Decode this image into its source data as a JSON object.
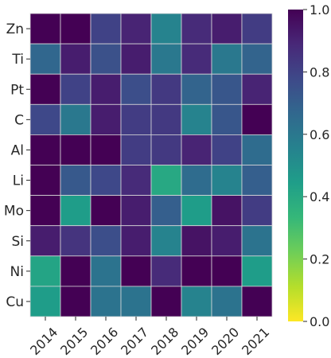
{
  "chart_data": {
    "type": "heatmap",
    "title": "",
    "xlabel": "",
    "ylabel": "",
    "x_categories": [
      "2014",
      "2015",
      "2016",
      "2017",
      "2018",
      "2019",
      "2020",
      "2021"
    ],
    "y_categories": [
      "Zn",
      "Ti",
      "Pt",
      "C",
      "Al",
      "Li",
      "Mo",
      "Si",
      "Ni",
      "Cu"
    ],
    "values": [
      [
        1.0,
        1.0,
        0.8,
        0.9,
        0.55,
        0.88,
        0.92,
        0.82
      ],
      [
        0.67,
        0.92,
        0.75,
        0.92,
        0.6,
        0.88,
        0.6,
        0.68
      ],
      [
        1.0,
        0.8,
        0.92,
        0.76,
        0.83,
        0.68,
        0.73,
        0.9
      ],
      [
        0.78,
        0.6,
        0.92,
        0.82,
        0.83,
        0.55,
        0.73,
        1.0
      ],
      [
        1.0,
        1.0,
        1.0,
        0.82,
        0.83,
        0.9,
        0.8,
        0.65
      ],
      [
        1.0,
        0.72,
        0.78,
        0.88,
        0.4,
        0.65,
        0.55,
        0.7
      ],
      [
        1.0,
        0.45,
        1.0,
        0.92,
        0.7,
        0.45,
        0.95,
        0.82
      ],
      [
        0.92,
        0.85,
        0.76,
        0.92,
        0.55,
        0.95,
        0.92,
        0.62
      ],
      [
        0.42,
        1.0,
        0.62,
        1.0,
        0.88,
        1.0,
        1.0,
        0.45
      ],
      [
        0.45,
        1.0,
        0.62,
        0.62,
        1.0,
        0.55,
        0.62,
        1.0
      ]
    ],
    "colorbar": {
      "range": [
        0.0,
        1.0
      ],
      "ticks": [
        "0.0",
        "0.2",
        "0.4",
        "0.6",
        "0.8",
        "1.0"
      ]
    },
    "colormap": [
      "#440154",
      "#482878",
      "#3e4989",
      "#31688e",
      "#26828e",
      "#1f9e89",
      "#35b779",
      "#6ece58",
      "#b5de2b",
      "#fde725"
    ],
    "colormap_note_reversed": true,
    "grid_line_color": "#d9d9d9"
  }
}
